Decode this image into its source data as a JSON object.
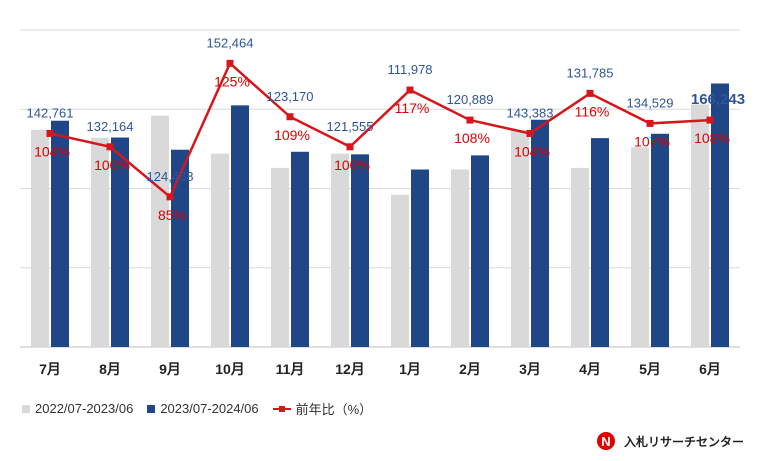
{
  "chart_data": {
    "type": "bar",
    "categories": [
      "7月",
      "8月",
      "9月",
      "10月",
      "11月",
      "12月",
      "1月",
      "2月",
      "3月",
      "4月",
      "5月",
      "6月"
    ],
    "series": [
      {
        "name": "2022/07-2023/06",
        "type": "bar",
        "color": "#d9d9d9",
        "values": [
          137000,
          132000,
          146000,
          122000,
          113000,
          122000,
          96000,
          112000,
          137000,
          113000,
          126000,
          153000
        ]
      },
      {
        "name": "2023/07-2024/06",
        "type": "bar",
        "color": "#1f4788",
        "values": [
          142761,
          132164,
          124468,
          152464,
          123170,
          121555,
          111978,
          120889,
          143383,
          131785,
          134529,
          166243
        ]
      },
      {
        "name": "前年比（%）",
        "type": "line",
        "color": "#d7161c",
        "values": [
          104,
          100,
          85,
          125,
          109,
          100,
          117,
          108,
          104,
          116,
          107,
          108
        ]
      }
    ],
    "bar_labels": [
      "142,761",
      "132,164",
      "124,468",
      "152,464",
      "123,170",
      "121,555",
      "111,978",
      "120,889",
      "143,383",
      "131,785",
      "134,529",
      "166,243"
    ],
    "line_labels": [
      "104%",
      "100%",
      "85%",
      "125%",
      "109%",
      "100%",
      "117%",
      "108%",
      "104%",
      "116%",
      "107%",
      "108%"
    ],
    "ylim": [
      0,
      200000
    ],
    "line_ylim": [
      40,
      135
    ],
    "grid": true,
    "legend_position": "bottom-left",
    "title": "",
    "xlabel": "",
    "ylabel": ""
  },
  "legend": {
    "items": [
      "2022/07-2023/06",
      "2023/07-2024/06",
      "前年比（%）"
    ]
  },
  "brand": {
    "name": "入札リサーチセンター",
    "logo_text": "N"
  },
  "colors": {
    "prior_bar": "#d9d9d9",
    "current_bar": "#1f4788",
    "ratio_line": "#d7161c",
    "grid": "#d9d9d9",
    "bar_label": "#2f5597",
    "ratio_label": "#e00000"
  }
}
